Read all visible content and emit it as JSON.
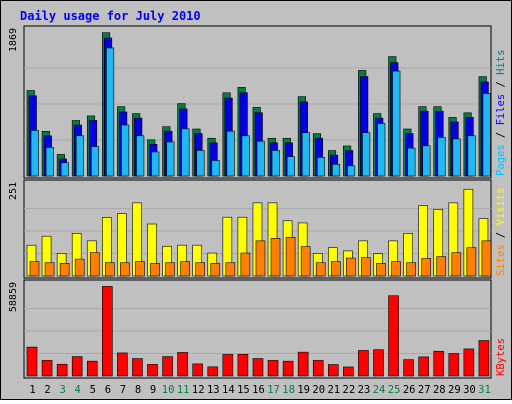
{
  "chart_data": [
    {
      "type": "bar",
      "title": "Daily usage for July 2010",
      "ylabel_parts": [
        {
          "text": "Pages",
          "color": "#00C0FF"
        },
        {
          "text": " / ",
          "color": "#000000"
        },
        {
          "text": "Files",
          "color": "#0000FF"
        },
        {
          "text": " / ",
          "color": "#000000"
        },
        {
          "text": "Hits",
          "color": "#008080"
        }
      ],
      "ymax_label": "1869",
      "ylim": [
        0,
        1869
      ],
      "categories": [
        "1",
        "2",
        "3",
        "4",
        "5",
        "6",
        "7",
        "8",
        "9",
        "10",
        "11",
        "12",
        "13",
        "14",
        "15",
        "16",
        "17",
        "18",
        "19",
        "20",
        "21",
        "22",
        "23",
        "24",
        "25",
        "26",
        "27",
        "28",
        "29",
        "30",
        "31"
      ],
      "series": [
        {
          "name": "Hits",
          "color": "#008040",
          "values": [
            1110,
            580,
            280,
            720,
            780,
            1860,
            900,
            810,
            470,
            640,
            940,
            610,
            490,
            1080,
            1150,
            890,
            490,
            490,
            1030,
            550,
            330,
            390,
            1370,
            810,
            1550,
            610,
            900,
            900,
            760,
            820,
            1290
          ]
        },
        {
          "name": "Files",
          "color": "#0000E0",
          "values": [
            1080,
            560,
            260,
            700,
            760,
            1830,
            870,
            790,
            450,
            620,
            910,
            590,
            470,
            1050,
            1120,
            860,
            470,
            470,
            1000,
            530,
            310,
            370,
            1330,
            790,
            1510,
            590,
            880,
            880,
            740,
            800,
            1260
          ]
        },
        {
          "name": "Pages",
          "color": "#20B8F0",
          "values": [
            670,
            450,
            250,
            600,
            460,
            1740,
            740,
            600,
            390,
            520,
            690,
            410,
            280,
            660,
            600,
            530,
            410,
            330,
            640,
            320,
            230,
            210,
            640,
            760,
            1440,
            440,
            470,
            580,
            560,
            600,
            1150
          ]
        }
      ]
    },
    {
      "type": "bar",
      "ylabel_parts": [
        {
          "text": "Sites",
          "color": "#FF8000"
        },
        {
          "text": " / ",
          "color": "#000000"
        },
        {
          "text": "Visits",
          "color": "#FFFF00"
        }
      ],
      "ymax_label": "251",
      "ylim": [
        0,
        251
      ],
      "categories": [
        "1",
        "2",
        "3",
        "4",
        "5",
        "6",
        "7",
        "8",
        "9",
        "10",
        "11",
        "12",
        "13",
        "14",
        "15",
        "16",
        "17",
        "18",
        "19",
        "20",
        "21",
        "22",
        "23",
        "24",
        "25",
        "26",
        "27",
        "28",
        "29",
        "30",
        "31"
      ],
      "series": [
        {
          "name": "Visits",
          "color": "#FFFF00",
          "values": [
            86,
            111,
            63,
            119,
            98,
            163,
            174,
            204,
            145,
            83,
            86,
            86,
            64,
            164,
            164,
            204,
            204,
            154,
            148,
            63,
            79,
            70,
            98,
            62,
            98,
            119,
            196,
            186,
            204,
            242,
            160
          ]
        },
        {
          "name": "Sites",
          "color": "#FF8000",
          "values": [
            40,
            37,
            35,
            47,
            65,
            37,
            37,
            40,
            35,
            37,
            40,
            37,
            35,
            37,
            64,
            98,
            105,
            108,
            82,
            37,
            40,
            50,
            51,
            35,
            40,
            37,
            49,
            54,
            65,
            79,
            98
          ]
        }
      ]
    },
    {
      "type": "bar",
      "ylabel_parts": [
        {
          "text": "KBytes",
          "color": "#FF0000"
        }
      ],
      "ymax_label": "58859",
      "ylim": [
        0,
        58859
      ],
      "categories": [
        "1",
        "2",
        "3",
        "4",
        "5",
        "6",
        "7",
        "8",
        "9",
        "10",
        "11",
        "12",
        "13",
        "14",
        "15",
        "16",
        "17",
        "18",
        "19",
        "20",
        "21",
        "22",
        "23",
        "24",
        "25",
        "26",
        "27",
        "28",
        "29",
        "30",
        "31"
      ],
      "series": [
        {
          "name": "KBytes",
          "color": "#FF0000",
          "values": [
            18900,
            10200,
            7700,
            12700,
            9700,
            58600,
            15100,
            11400,
            7600,
            12700,
            15400,
            7900,
            6000,
            14100,
            14200,
            11400,
            10200,
            9700,
            15600,
            10200,
            7500,
            5900,
            16700,
            17200,
            52500,
            10700,
            12500,
            16200,
            14700,
            17700,
            23200
          ]
        }
      ]
    }
  ],
  "weekend_days": [
    "3",
    "4",
    "10",
    "11",
    "17",
    "18",
    "24",
    "25",
    "31"
  ],
  "day_label_colors": {
    "weekday": "#000000",
    "weekend": "#008040"
  }
}
